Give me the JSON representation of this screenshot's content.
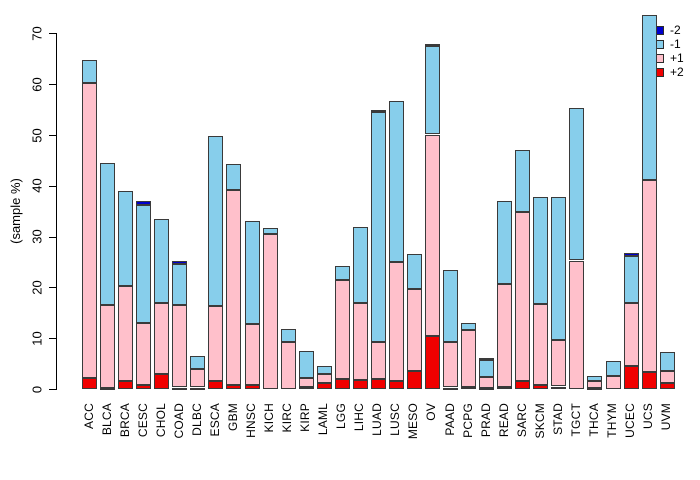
{
  "figure": {
    "background": "#ffffff",
    "border_color": "#3a3a3a",
    "axis_color": "#000000"
  },
  "y_axis": {
    "label": "(sample %)",
    "ticks": [
      0,
      10,
      20,
      30,
      40,
      50,
      60,
      70
    ],
    "max": 70
  },
  "legend": {
    "position": "top-right",
    "items": [
      {
        "label": "-2",
        "color": "#0000CD"
      },
      {
        "label": "-1",
        "color": "#87CEEB"
      },
      {
        "label": "+1",
        "color": "#FFC0CB"
      },
      {
        "label": "+2",
        "color": "#F00000"
      }
    ]
  },
  "chart_data": {
    "type": "bar",
    "stacked": true,
    "title": "",
    "xlabel": "",
    "ylabel": "(sample %)",
    "ylim": [
      0,
      70
    ],
    "grid": false,
    "legend_position": "top-right",
    "stack_order_bottom_to_top": [
      "+2",
      "+1",
      "-1",
      "-2"
    ],
    "categories": [
      "ACC",
      "BLCA",
      "BRCA",
      "CESC",
      "CHOL",
      "COAD",
      "DLBC",
      "ESCA",
      "GBM",
      "HNSC",
      "KICH",
      "KIRC",
      "KIRP",
      "LAML",
      "LGG",
      "LIHC",
      "LUAD",
      "LUSC",
      "MESO",
      "OV",
      "PAAD",
      "PCPG",
      "PRAD",
      "READ",
      "SARC",
      "SKCM",
      "STAD",
      "TGCT",
      "THCA",
      "THYM",
      "UCEC",
      "UCS",
      "UVM"
    ],
    "series": [
      {
        "name": "+2",
        "color": "#F00000",
        "values": [
          2.1,
          0.2,
          1.6,
          0.8,
          2.9,
          0.3,
          0.3,
          1.6,
          0.8,
          0.8,
          0,
          0,
          0.4,
          1.2,
          2.0,
          1.8,
          2.0,
          1.6,
          3.6,
          10.5,
          0.3,
          0.4,
          0.2,
          0.4,
          1.6,
          0.8,
          0.5,
          0,
          0.2,
          0,
          4.6,
          3.4,
          1.1
        ]
      },
      {
        "name": "+1",
        "color": "#FFC0CB",
        "values": [
          58.2,
          16.4,
          18.6,
          12.2,
          14.0,
          16.2,
          3.6,
          14.8,
          38.4,
          12.0,
          30.5,
          9.2,
          1.8,
          1.7,
          19.4,
          15.1,
          7.2,
          23.5,
          16.0,
          39.6,
          8.9,
          11.3,
          2.1,
          20.2,
          33.3,
          15.9,
          9.2,
          25.3,
          1.4,
          2.5,
          12.3,
          37.8,
          2.5
        ]
      },
      {
        "name": "-1",
        "color": "#87CEEB",
        "values": [
          4.4,
          27.9,
          18.7,
          23.2,
          16.5,
          8.2,
          2.6,
          33.5,
          5.1,
          20.3,
          1.3,
          2.7,
          5.2,
          1.7,
          2.9,
          15.0,
          45.3,
          31.6,
          6.9,
          17.4,
          14.3,
          1.3,
          3.5,
          16.5,
          12.2,
          21.2,
          28.2,
          30.1,
          1.0,
          3.0,
          9.3,
          32.5,
          3.6
        ]
      },
      {
        "name": "-2",
        "color": "#0000CD",
        "values": [
          0,
          0,
          0,
          0.8,
          0,
          0.6,
          0,
          0,
          0,
          0,
          0,
          0,
          0,
          0,
          0,
          0,
          0.5,
          0,
          0,
          0.4,
          0,
          0,
          0.4,
          0,
          0,
          0,
          0,
          0,
          0,
          0,
          0.5,
          0,
          0
        ]
      }
    ]
  }
}
